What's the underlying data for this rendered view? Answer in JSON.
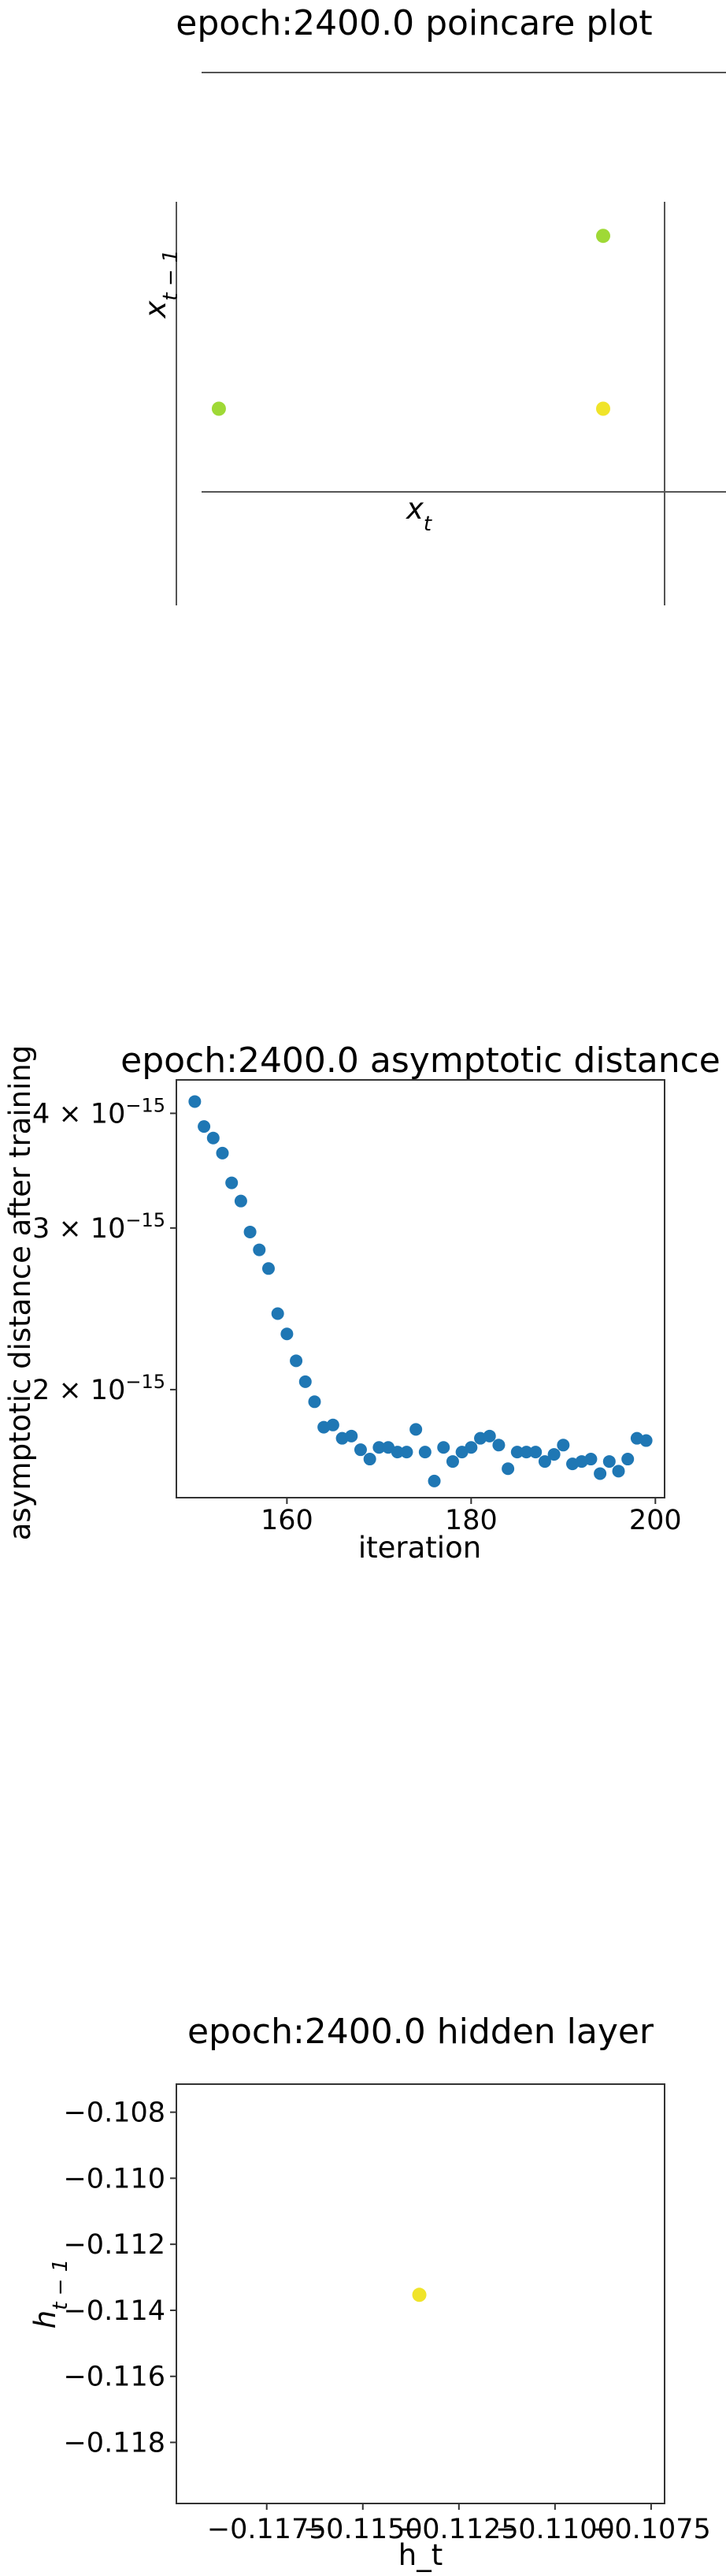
{
  "chart_data": [
    {
      "type": "scatter",
      "title": "epoch:2400.0 poincare plot",
      "xlabel": "x_t",
      "ylabel": "x_{t-1}",
      "xlim": [
        0,
        1
      ],
      "ylim": [
        0,
        1
      ],
      "grid": false,
      "axes_style": "centered spines, no tick labels",
      "points": [
        {
          "x": 0.043,
          "y": 0.375,
          "color": "#9fd936"
        },
        {
          "x": 1.0,
          "y": 0.375,
          "color": "#f0e42a"
        },
        {
          "x": 1.0,
          "y": 0.8,
          "color": "#9fd936"
        }
      ]
    },
    {
      "type": "scatter",
      "title": "epoch:2400.0 asymptotic distance",
      "xlabel": "iteration",
      "ylabel": "asymptotic distance after training",
      "xlim": [
        148,
        201
      ],
      "ylim": [
        1.525e-15,
        4.35e-15
      ],
      "yscale": "log",
      "grid": false,
      "xticks": [
        160,
        180,
        200
      ],
      "yticks": [
        {
          "value": 4e-15,
          "mantissa": "4",
          "exponent": "−15"
        },
        {
          "value": 3e-15,
          "mantissa": "3",
          "exponent": "−15"
        },
        {
          "value": 2e-15,
          "mantissa": "2",
          "exponent": "−15"
        }
      ],
      "color": "#1f77b4",
      "x": [
        150,
        151,
        152,
        153,
        154,
        155,
        156,
        157,
        158,
        159,
        160,
        161,
        162,
        163,
        164,
        165,
        166,
        167,
        168,
        169,
        170,
        171,
        172,
        173,
        174,
        175,
        176,
        177,
        178,
        179,
        180,
        181,
        182,
        183,
        184,
        185,
        186,
        187,
        188,
        189,
        190,
        191,
        192,
        193,
        194,
        195,
        196,
        197,
        198,
        199
      ],
      "y": [
        4.12e-15,
        3.87e-15,
        3.76e-15,
        3.62e-15,
        3.36e-15,
        3.21e-15,
        2.97e-15,
        2.84e-15,
        2.71e-15,
        2.42e-15,
        2.3e-15,
        2.15e-15,
        2.04e-15,
        1.94e-15,
        1.82e-15,
        1.83e-15,
        1.77e-15,
        1.78e-15,
        1.72e-15,
        1.68e-15,
        1.73e-15,
        1.73e-15,
        1.71e-15,
        1.71e-15,
        1.81e-15,
        1.71e-15,
        1.59e-15,
        1.73e-15,
        1.67e-15,
        1.71e-15,
        1.73e-15,
        1.77e-15,
        1.78e-15,
        1.74e-15,
        1.64e-15,
        1.71e-15,
        1.71e-15,
        1.71e-15,
        1.67e-15,
        1.7e-15,
        1.74e-15,
        1.66e-15,
        1.67e-15,
        1.68e-15,
        1.62e-15,
        1.67e-15,
        1.63e-15,
        1.68e-15,
        1.77e-15,
        1.76e-15
      ]
    },
    {
      "type": "scatter",
      "title": "epoch:2400.0 hidden layer",
      "xlabel": "h_t",
      "ylabel": "h_{t-1}",
      "xlim": [
        -0.11985,
        -0.10715
      ],
      "ylim": [
        -0.11985,
        -0.10715
      ],
      "grid": false,
      "xticks": [
        {
          "value": -0.1175,
          "label": "−0.1175"
        },
        {
          "value": -0.115,
          "label": "−0.1150"
        },
        {
          "value": -0.1125,
          "label": "−0.1125"
        },
        {
          "value": -0.11,
          "label": "−0.1100"
        },
        {
          "value": -0.1075,
          "label": "−0.1075"
        }
      ],
      "yticks": [
        {
          "value": -0.108,
          "label": "−0.108"
        },
        {
          "value": -0.11,
          "label": "−0.110"
        },
        {
          "value": -0.112,
          "label": "−0.112"
        },
        {
          "value": -0.114,
          "label": "−0.114"
        },
        {
          "value": -0.116,
          "label": "−0.116"
        },
        {
          "value": -0.118,
          "label": "−0.118"
        }
      ],
      "points": [
        {
          "x": -0.11353,
          "y": -0.11353,
          "color": "#f0e42a"
        }
      ]
    }
  ]
}
